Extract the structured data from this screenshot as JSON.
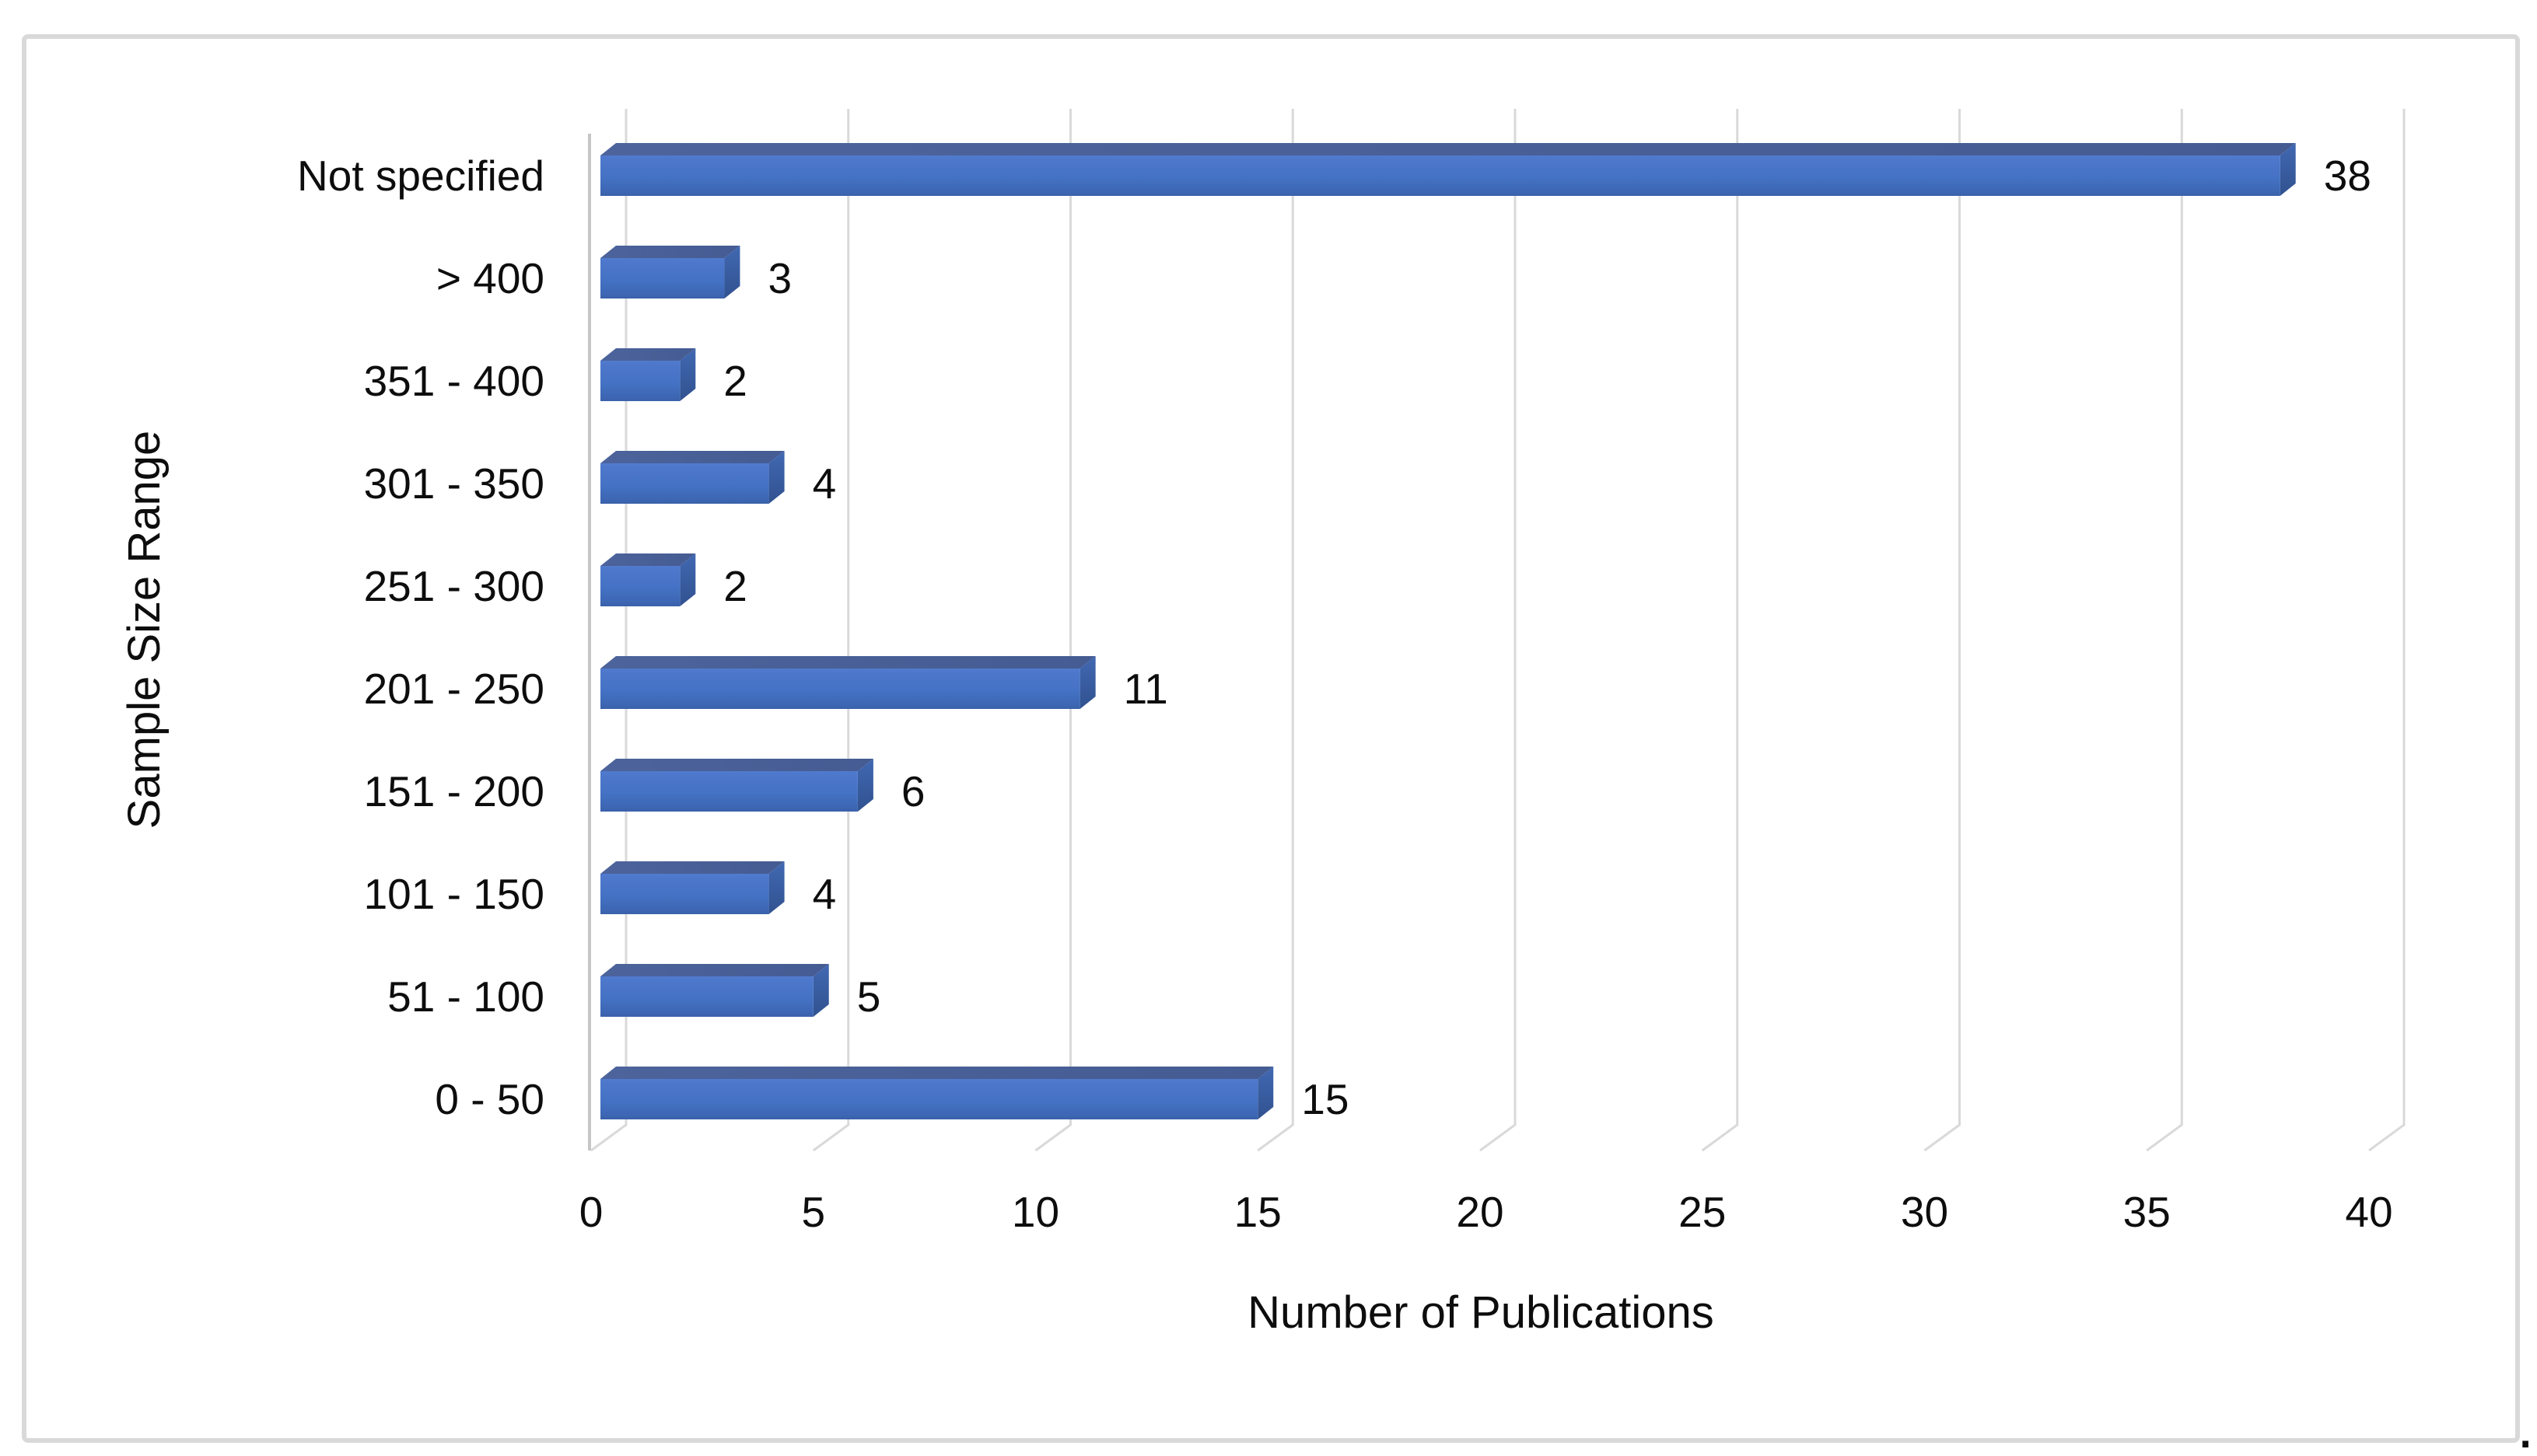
{
  "chart_data": {
    "type": "bar",
    "orientation": "horizontal",
    "style": "3d-box-bars",
    "categories": [
      "Not specified",
      "> 400",
      "351 - 400",
      "301 - 350",
      "251 - 300",
      "201 - 250",
      "151 - 200",
      "101 - 150",
      "51 - 100",
      "0 - 50"
    ],
    "values": [
      38,
      3,
      2,
      4,
      2,
      11,
      6,
      4,
      5,
      15
    ],
    "data_labels": [
      "38",
      "3",
      "2",
      "4",
      "2",
      "11",
      "6",
      "4",
      "5",
      "15"
    ],
    "title": "",
    "xlabel": "Number of Publications",
    "ylabel": "Sample Size Range",
    "xlim": [
      0,
      40
    ],
    "xticks": [
      0,
      5,
      10,
      15,
      20,
      25,
      30,
      35,
      40
    ],
    "grid": true,
    "legend": "none"
  },
  "colors": {
    "bar_main": "#4472C4",
    "bar_front_light": "#517BCE",
    "bar_front_dark": "#3A61AA",
    "bar_top_face": "#485E95",
    "bar_end_light": "#4168B2",
    "bar_end_dark": "#315290",
    "gridline": "#D9D9D9",
    "axis_line": "#C6C6C6",
    "text": "#0D0D0D",
    "border": "#D9D9D9",
    "background": "#FFFFFF"
  },
  "misc": {
    "trailing_text": "."
  }
}
